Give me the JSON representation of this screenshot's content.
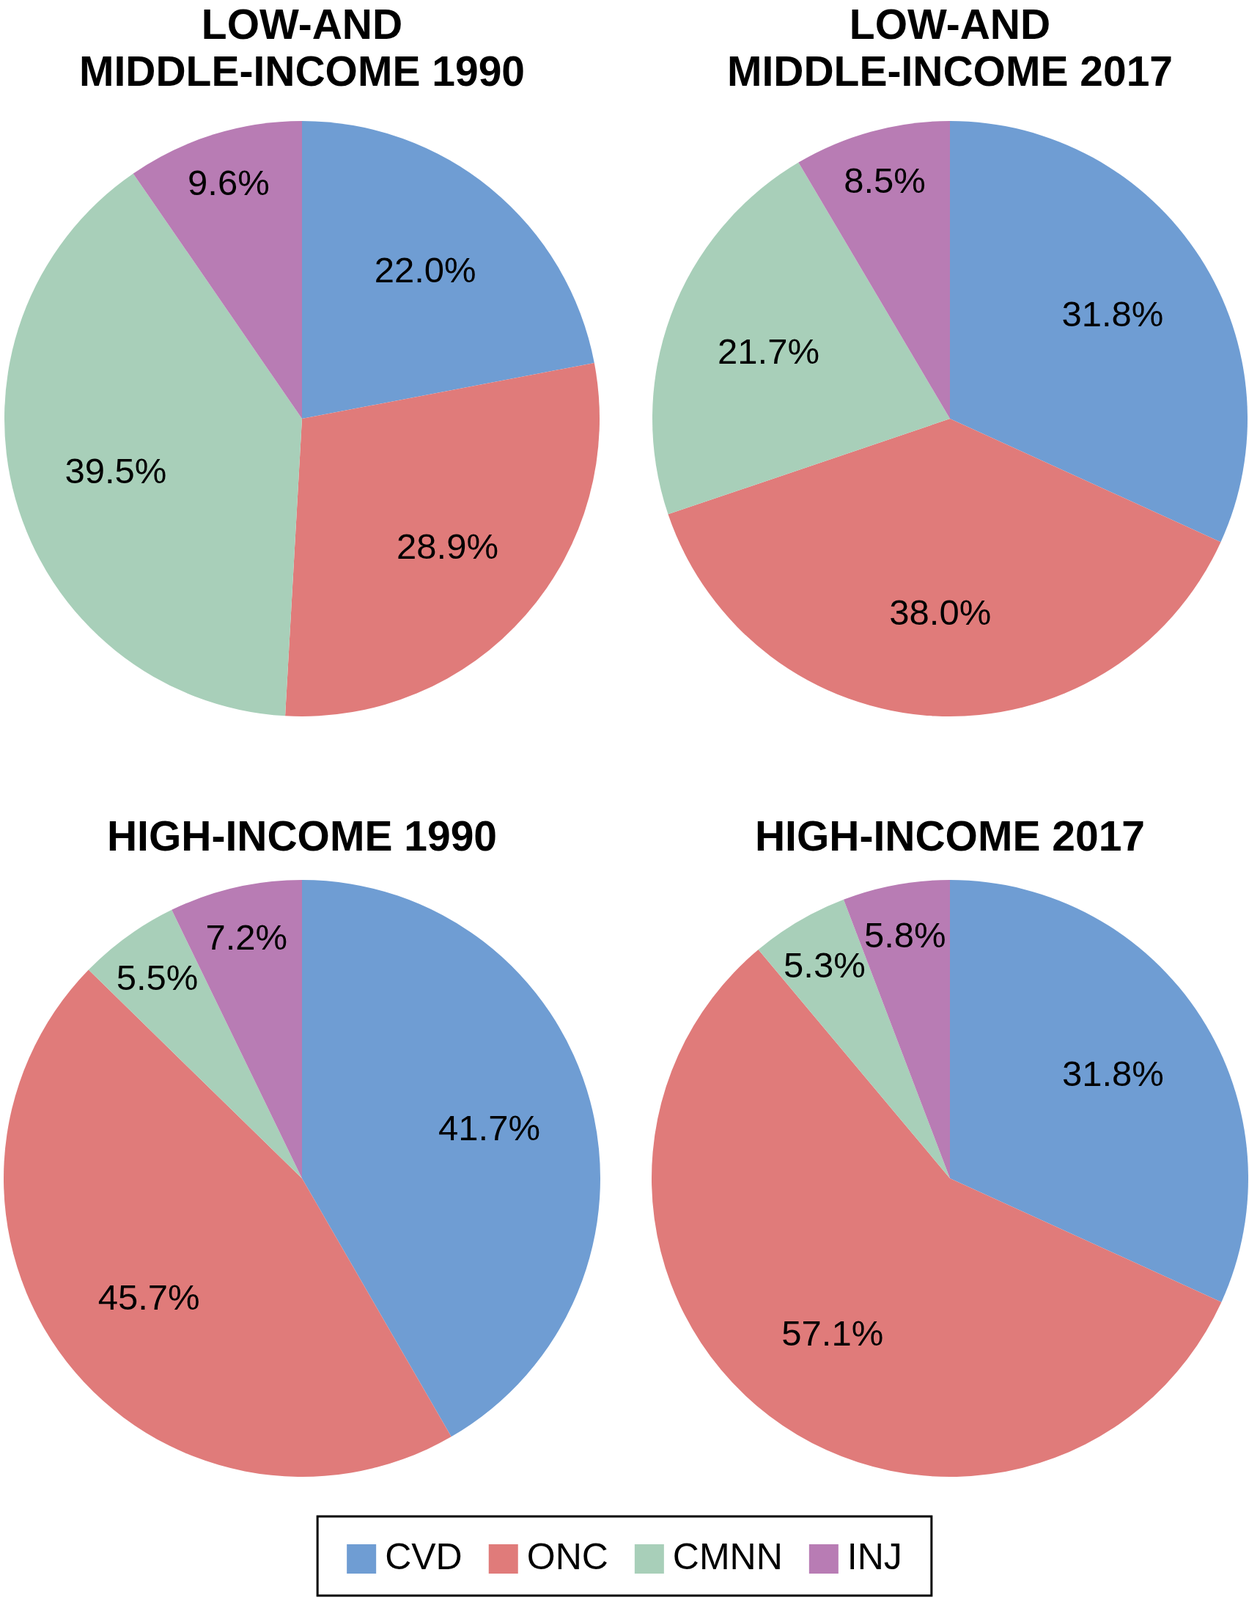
{
  "chart_data": [
    {
      "type": "pie",
      "title": "LOW-AND\nMIDDLE-INCOME 1990",
      "categories": [
        "CVD",
        "ONC",
        "CMNN",
        "INJ"
      ],
      "values": [
        22.0,
        28.9,
        39.5,
        9.6
      ],
      "value_labels": [
        "22.0%",
        "28.9%",
        "39.5%",
        "9.6%"
      ],
      "colors": [
        "#6f9dd3",
        "#e07b7a",
        "#a8cfb9",
        "#b87cb4"
      ],
      "data_labels": true,
      "legend": "bottom"
    },
    {
      "type": "pie",
      "title": "LOW-AND\nMIDDLE-INCOME 2017",
      "categories": [
        "CVD",
        "ONC",
        "CMNN",
        "INJ"
      ],
      "values": [
        31.8,
        38.0,
        21.7,
        8.5
      ],
      "value_labels": [
        "31.8%",
        "38.0%",
        "21.7%",
        "8.5%"
      ],
      "colors": [
        "#6f9dd3",
        "#e07b7a",
        "#a8cfb9",
        "#b87cb4"
      ],
      "data_labels": true,
      "legend": "bottom"
    },
    {
      "type": "pie",
      "title": "HIGH-INCOME 1990",
      "categories": [
        "CVD",
        "ONC",
        "CMNN",
        "INJ"
      ],
      "values": [
        41.7,
        45.7,
        5.5,
        7.2
      ],
      "value_labels": [
        "41.7%",
        "45.7%",
        "5.5%",
        "7.2%"
      ],
      "colors": [
        "#6f9dd3",
        "#e07b7a",
        "#a8cfb9",
        "#b87cb4"
      ],
      "data_labels": true,
      "legend": "bottom"
    },
    {
      "type": "pie",
      "title": "HIGH-INCOME 2017",
      "categories": [
        "CVD",
        "ONC",
        "CMNN",
        "INJ"
      ],
      "values": [
        31.8,
        57.1,
        5.3,
        5.8
      ],
      "value_labels": [
        "31.8%",
        "57.1%",
        "5.3%",
        "5.8%"
      ],
      "colors": [
        "#6f9dd3",
        "#e07b7a",
        "#a8cfb9",
        "#b87cb4"
      ],
      "data_labels": true,
      "legend": "bottom"
    }
  ]
}
